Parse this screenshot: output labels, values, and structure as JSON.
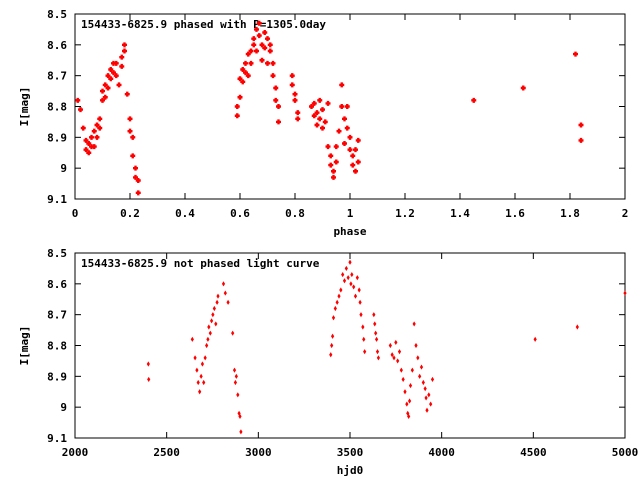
{
  "chart_data": [
    {
      "type": "scatter",
      "title": "154433-6825.9 phased with P=1305.0day",
      "xlabel": "phase",
      "ylabel": "I[mag]",
      "xlim": [
        0,
        2
      ],
      "ylim": [
        9.1,
        8.5
      ],
      "y_inverted": true,
      "xticks": [
        "0",
        "0.2",
        "0.4",
        "0.6",
        "0.8",
        "1",
        "1.2",
        "1.4",
        "1.6",
        "1.8",
        "2"
      ],
      "xtick_values": [
        0,
        0.2,
        0.4,
        0.6,
        0.8,
        1.0,
        1.2,
        1.4,
        1.6,
        1.8,
        2.0
      ],
      "yticks": [
        "8.5",
        "8.6",
        "8.7",
        "8.8",
        "8.9",
        "9",
        "9.1"
      ],
      "ytick_values": [
        8.5,
        8.6,
        8.7,
        8.8,
        8.9,
        9.0,
        9.1
      ],
      "series_color": "#ff0000",
      "points": [
        [
          0.01,
          8.78
        ],
        [
          0.02,
          8.81
        ],
        [
          0.03,
          8.87
        ],
        [
          0.04,
          8.91
        ],
        [
          0.04,
          8.94
        ],
        [
          0.05,
          8.92
        ],
        [
          0.05,
          8.95
        ],
        [
          0.06,
          8.93
        ],
        [
          0.06,
          8.9
        ],
        [
          0.07,
          8.88
        ],
        [
          0.07,
          8.93
        ],
        [
          0.08,
          8.86
        ],
        [
          0.08,
          8.9
        ],
        [
          0.09,
          8.84
        ],
        [
          0.09,
          8.87
        ],
        [
          0.1,
          8.78
        ],
        [
          0.1,
          8.75
        ],
        [
          0.11,
          8.73
        ],
        [
          0.11,
          8.77
        ],
        [
          0.12,
          8.7
        ],
        [
          0.12,
          8.74
        ],
        [
          0.13,
          8.68
        ],
        [
          0.13,
          8.71
        ],
        [
          0.14,
          8.66
        ],
        [
          0.14,
          8.69
        ],
        [
          0.15,
          8.66
        ],
        [
          0.15,
          8.7
        ],
        [
          0.16,
          8.73
        ],
        [
          0.17,
          8.67
        ],
        [
          0.17,
          8.64
        ],
        [
          0.18,
          8.6
        ],
        [
          0.18,
          8.62
        ],
        [
          0.19,
          8.76
        ],
        [
          0.2,
          8.84
        ],
        [
          0.2,
          8.88
        ],
        [
          0.21,
          8.9
        ],
        [
          0.21,
          8.96
        ],
        [
          0.22,
          9.0
        ],
        [
          0.22,
          9.03
        ],
        [
          0.23,
          9.04
        ],
        [
          0.23,
          9.08
        ],
        [
          0.59,
          8.83
        ],
        [
          0.59,
          8.8
        ],
        [
          0.6,
          8.77
        ],
        [
          0.6,
          8.71
        ],
        [
          0.61,
          8.68
        ],
        [
          0.61,
          8.72
        ],
        [
          0.62,
          8.66
        ],
        [
          0.62,
          8.69
        ],
        [
          0.63,
          8.63
        ],
        [
          0.63,
          8.7
        ],
        [
          0.64,
          8.62
        ],
        [
          0.64,
          8.66
        ],
        [
          0.65,
          8.6
        ],
        [
          0.65,
          8.58
        ],
        [
          0.66,
          8.55
        ],
        [
          0.66,
          8.62
        ],
        [
          0.67,
          8.57
        ],
        [
          0.67,
          8.53
        ],
        [
          0.68,
          8.6
        ],
        [
          0.68,
          8.65
        ],
        [
          0.69,
          8.56
        ],
        [
          0.69,
          8.61
        ],
        [
          0.7,
          8.58
        ],
        [
          0.7,
          8.66
        ],
        [
          0.71,
          8.62
        ],
        [
          0.71,
          8.6
        ],
        [
          0.72,
          8.66
        ],
        [
          0.72,
          8.7
        ],
        [
          0.73,
          8.74
        ],
        [
          0.73,
          8.78
        ],
        [
          0.74,
          8.8
        ],
        [
          0.74,
          8.85
        ],
        [
          0.79,
          8.7
        ],
        [
          0.79,
          8.73
        ],
        [
          0.8,
          8.76
        ],
        [
          0.8,
          8.78
        ],
        [
          0.81,
          8.82
        ],
        [
          0.81,
          8.84
        ],
        [
          0.86,
          8.8
        ],
        [
          0.87,
          8.79
        ],
        [
          0.87,
          8.83
        ],
        [
          0.88,
          8.82
        ],
        [
          0.88,
          8.86
        ],
        [
          0.89,
          8.78
        ],
        [
          0.89,
          8.84
        ],
        [
          0.9,
          8.81
        ],
        [
          0.9,
          8.87
        ],
        [
          0.91,
          8.85
        ],
        [
          0.92,
          8.79
        ],
        [
          0.92,
          8.93
        ],
        [
          0.93,
          8.96
        ],
        [
          0.93,
          8.99
        ],
        [
          0.94,
          9.01
        ],
        [
          0.94,
          9.03
        ],
        [
          0.95,
          8.98
        ],
        [
          0.95,
          8.93
        ],
        [
          0.96,
          8.88
        ],
        [
          0.97,
          8.73
        ],
        [
          0.97,
          8.8
        ],
        [
          0.98,
          8.84
        ],
        [
          0.98,
          8.92
        ],
        [
          0.99,
          8.87
        ],
        [
          0.99,
          8.8
        ],
        [
          1.0,
          8.9
        ],
        [
          1.0,
          8.94
        ],
        [
          1.01,
          8.96
        ],
        [
          1.01,
          8.99
        ],
        [
          1.02,
          9.01
        ],
        [
          1.02,
          8.94
        ],
        [
          1.03,
          8.98
        ],
        [
          1.03,
          8.91
        ],
        [
          1.45,
          8.78
        ],
        [
          1.63,
          8.74
        ],
        [
          1.82,
          8.63
        ],
        [
          1.84,
          8.86
        ],
        [
          1.84,
          8.91
        ]
      ]
    },
    {
      "type": "scatter",
      "title": "154433-6825.9 not phased light curve",
      "xlabel": "hjd0",
      "ylabel": "I[mag]",
      "xlim": [
        2000,
        5000
      ],
      "ylim": [
        9.1,
        8.5
      ],
      "y_inverted": true,
      "xticks": [
        "2000",
        "2500",
        "3000",
        "3500",
        "4000",
        "4500",
        "5000"
      ],
      "xtick_values": [
        2000,
        2500,
        3000,
        3500,
        4000,
        4500,
        5000
      ],
      "yticks": [
        "8.5",
        "8.6",
        "8.7",
        "8.8",
        "8.9",
        "9",
        "9.1"
      ],
      "ytick_values": [
        8.5,
        8.6,
        8.7,
        8.8,
        8.9,
        9.0,
        9.1
      ],
      "series_color": "#ff0000",
      "points": [
        [
          2400,
          8.86
        ],
        [
          2402,
          8.91
        ],
        [
          2640,
          8.78
        ],
        [
          2655,
          8.84
        ],
        [
          2665,
          8.88
        ],
        [
          2672,
          8.92
        ],
        [
          2680,
          8.95
        ],
        [
          2688,
          8.9
        ],
        [
          2695,
          8.86
        ],
        [
          2702,
          8.92
        ],
        [
          2710,
          8.84
        ],
        [
          2718,
          8.8
        ],
        [
          2725,
          8.78
        ],
        [
          2730,
          8.74
        ],
        [
          2738,
          8.76
        ],
        [
          2745,
          8.72
        ],
        [
          2752,
          8.7
        ],
        [
          2760,
          8.68
        ],
        [
          2768,
          8.73
        ],
        [
          2775,
          8.66
        ],
        [
          2780,
          8.64
        ],
        [
          2810,
          8.6
        ],
        [
          2820,
          8.63
        ],
        [
          2835,
          8.66
        ],
        [
          2860,
          8.76
        ],
        [
          2870,
          8.88
        ],
        [
          2875,
          8.92
        ],
        [
          2880,
          8.9
        ],
        [
          2888,
          8.96
        ],
        [
          2895,
          9.02
        ],
        [
          2900,
          9.03
        ],
        [
          2905,
          9.08
        ],
        [
          3395,
          8.83
        ],
        [
          3400,
          8.8
        ],
        [
          3405,
          8.77
        ],
        [
          3410,
          8.71
        ],
        [
          3420,
          8.68
        ],
        [
          3430,
          8.66
        ],
        [
          3440,
          8.64
        ],
        [
          3450,
          8.62
        ],
        [
          3460,
          8.57
        ],
        [
          3470,
          8.59
        ],
        [
          3480,
          8.55
        ],
        [
          3490,
          8.58
        ],
        [
          3500,
          8.53
        ],
        [
          3505,
          8.6
        ],
        [
          3510,
          8.57
        ],
        [
          3520,
          8.61
        ],
        [
          3530,
          8.64
        ],
        [
          3540,
          8.58
        ],
        [
          3550,
          8.62
        ],
        [
          3555,
          8.66
        ],
        [
          3560,
          8.7
        ],
        [
          3570,
          8.74
        ],
        [
          3575,
          8.78
        ],
        [
          3580,
          8.82
        ],
        [
          3630,
          8.7
        ],
        [
          3635,
          8.73
        ],
        [
          3640,
          8.76
        ],
        [
          3645,
          8.78
        ],
        [
          3650,
          8.82
        ],
        [
          3655,
          8.84
        ],
        [
          3720,
          8.8
        ],
        [
          3730,
          8.83
        ],
        [
          3740,
          8.84
        ],
        [
          3750,
          8.79
        ],
        [
          3760,
          8.85
        ],
        [
          3770,
          8.82
        ],
        [
          3780,
          8.88
        ],
        [
          3790,
          8.91
        ],
        [
          3800,
          8.95
        ],
        [
          3810,
          8.99
        ],
        [
          3815,
          9.02
        ],
        [
          3820,
          9.03
        ],
        [
          3825,
          8.98
        ],
        [
          3830,
          8.93
        ],
        [
          3840,
          8.88
        ],
        [
          3850,
          8.73
        ],
        [
          3860,
          8.8
        ],
        [
          3870,
          8.84
        ],
        [
          3880,
          8.9
        ],
        [
          3890,
          8.87
        ],
        [
          3900,
          8.92
        ],
        [
          3910,
          8.94
        ],
        [
          3915,
          8.97
        ],
        [
          3920,
          9.01
        ],
        [
          3930,
          8.96
        ],
        [
          3940,
          8.99
        ],
        [
          3950,
          8.91
        ],
        [
          4510,
          8.78
        ],
        [
          4740,
          8.74
        ],
        [
          5000,
          8.63
        ]
      ]
    }
  ]
}
